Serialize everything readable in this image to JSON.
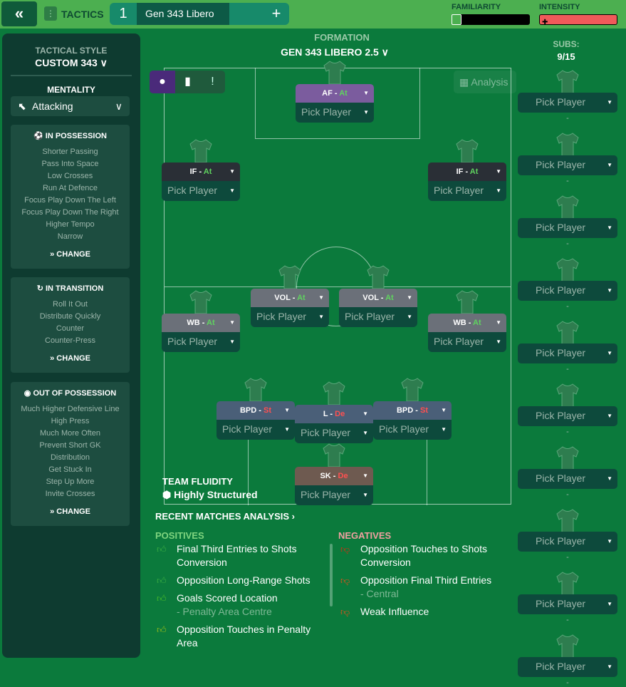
{
  "topbar": {
    "back_icon": "double-chevron-left",
    "tactics_label": "TACTICS",
    "tab_number": "1",
    "tab_name": "Gen 343 Libero 2.5",
    "plus": "+",
    "familiarity_label": "FAMILIARITY",
    "intensity_label": "INTENSITY",
    "familiarity_level": 0.1,
    "intensity_level": 0.95
  },
  "formation": {
    "label": "FORMATION",
    "name": "GEN 343 LIBERO 2.5"
  },
  "subs": {
    "label": "SUBS:",
    "count": "9/15",
    "pick": "Pick Player",
    "dash": "-"
  },
  "analysis_label": "Analysis",
  "left": {
    "style_label": "TACTICAL STYLE",
    "style_value": "CUSTOM 343",
    "mentality_label": "MENTALITY",
    "mentality_value": "Attacking",
    "in_possession": {
      "title": "IN POSSESSION",
      "items": [
        "Shorter Passing",
        "Pass Into Space",
        "Low Crosses",
        "Run At Defence",
        "Focus Play Down The Left",
        "Focus Play Down The Right",
        "Higher Tempo",
        "Narrow"
      ]
    },
    "in_transition": {
      "title": "IN TRANSITION",
      "items": [
        "Roll It Out",
        "Distribute Quickly",
        "Counter",
        "Counter-Press"
      ]
    },
    "out_possession": {
      "title": "OUT OF POSSESSION",
      "items": [
        "Much Higher Defensive Line",
        "High Press",
        "Much More Often",
        "Prevent Short GK",
        "Distribution",
        "Get Stuck In",
        "Step Up More",
        "Invite Crosses"
      ]
    },
    "change": "CHANGE"
  },
  "players": [
    {
      "role": "AF",
      "duty": "At",
      "color": "#7b5c9e"
    },
    {
      "role": "IF",
      "duty": "At",
      "color": "#2a2f36"
    },
    {
      "role": "IF",
      "duty": "At",
      "color": "#2a2f36"
    },
    {
      "role": "VOL",
      "duty": "At",
      "color": "#6b7079"
    },
    {
      "role": "VOL",
      "duty": "At",
      "color": "#6b7079"
    },
    {
      "role": "WB",
      "duty": "At",
      "color": "#6b7079"
    },
    {
      "role": "WB",
      "duty": "At",
      "color": "#6b7079"
    },
    {
      "role": "BPD",
      "duty": "St",
      "color": "#4a5f78"
    },
    {
      "role": "L",
      "duty": "De",
      "color": "#4a5f78"
    },
    {
      "role": "BPD",
      "duty": "St",
      "color": "#4a5f78"
    },
    {
      "role": "SK",
      "duty": "De",
      "color": "#6e5a50"
    }
  ],
  "pick_player": "Pick Player",
  "fluidity": {
    "label": "TEAM FLUIDITY",
    "value": "Highly Structured"
  },
  "recent": {
    "title": "RECENT MATCHES ANALYSIS ›",
    "positives_label": "POSITIVES",
    "negatives_label": "NEGATIVES",
    "positives": [
      {
        "text": "Final Third Entries to Shots Conversion",
        "note": "",
        "color": "#3cb043"
      },
      {
        "text": "Opposition Long-Range Shots",
        "note": "",
        "color": "#3cb043"
      },
      {
        "text": "Goals Scored Location",
        "note": "- Penalty Area Centre",
        "color": "#4cc02a"
      },
      {
        "text": "Opposition Touches in Penalty Area",
        "note": "",
        "color": "#9bbf1a"
      }
    ],
    "negatives": [
      {
        "text": "Opposition Touches to Shots Conversion",
        "note": "",
        "color": "#e02a10"
      },
      {
        "text": "Opposition Final Third Entries",
        "note": "- Central",
        "color": "#e8501a"
      },
      {
        "text": "Weak Influence",
        "note": "",
        "color": "#e8501a"
      }
    ]
  },
  "colors": {
    "attack_duty": "#5fd35f",
    "defend_duty": "#ff5050",
    "topbar": "#4caf50",
    "pitch": "#0b7a3c"
  }
}
